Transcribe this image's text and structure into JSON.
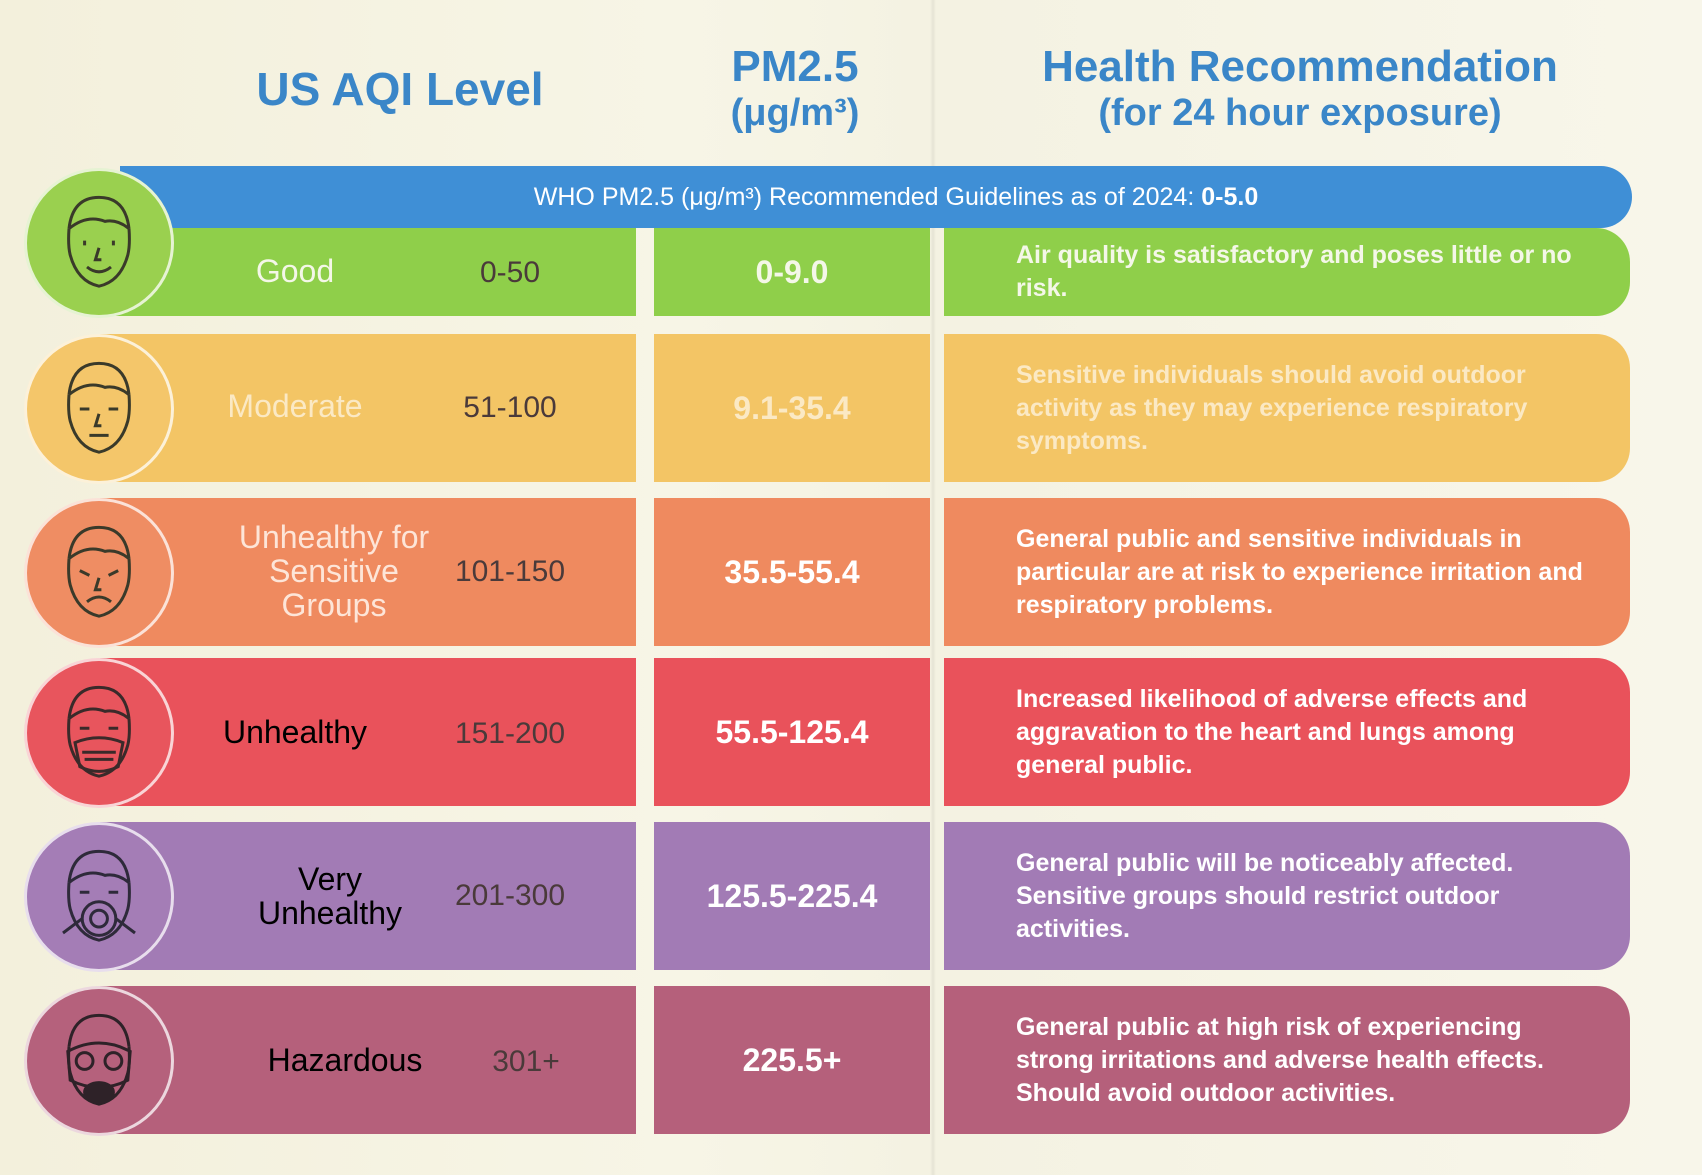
{
  "headers": {
    "aqi": "US AQI Level",
    "pm_title": "PM2.5",
    "pm_unit": "(μg/m³)",
    "health_title": "Health Recommendation",
    "health_sub": "(for 24 hour exposure)"
  },
  "who": {
    "label": "WHO PM2.5 (μg/m³) Recommended Guidelines as of 2024: ",
    "value": "0-5.0"
  },
  "levels": [
    {
      "name": "Good",
      "range": "0-50",
      "pm": "0-9.0",
      "recommendation": "Air quality is satisfactory and poses little or no risk.",
      "color": "#8fcf4a",
      "icon": "smiling-face-icon"
    },
    {
      "name": "Moderate",
      "range": "51-100",
      "pm": "9.1-35.4",
      "recommendation": "Sensitive individuals should avoid outdoor activity as they may experience respiratory symptoms.",
      "color": "#f3c565",
      "icon": "neutral-face-icon"
    },
    {
      "name": "Unhealthy for Sensitive Groups",
      "range": "101-150",
      "pm": "35.5-55.4",
      "recommendation": "General public and sensitive individuals in particular are at risk to experience irritation and respiratory problems.",
      "color": "#ef8a5f",
      "icon": "unwell-face-icon"
    },
    {
      "name": "Unhealthy",
      "range": "151-200",
      "pm": "55.5-125.4",
      "recommendation": "Increased likelihood of adverse effects and aggravation to the heart and lungs among general public.",
      "color": "#e9525b",
      "icon": "face-mask-icon"
    },
    {
      "name": "Very Unhealthy",
      "range": "201-300",
      "pm": "125.5-225.4",
      "recommendation": "General public will be noticeably affected. Sensitive groups should restrict outdoor activities.",
      "color": "#a27bb5",
      "icon": "respirator-face-icon"
    },
    {
      "name": "Hazardous",
      "range": "301+",
      "pm": "225.5+",
      "recommendation": "General public at high risk of experiencing strong irritations and adverse health effects. Should avoid outdoor activities.",
      "color": "#b5607b",
      "icon": "gas-mask-icon"
    }
  ]
}
